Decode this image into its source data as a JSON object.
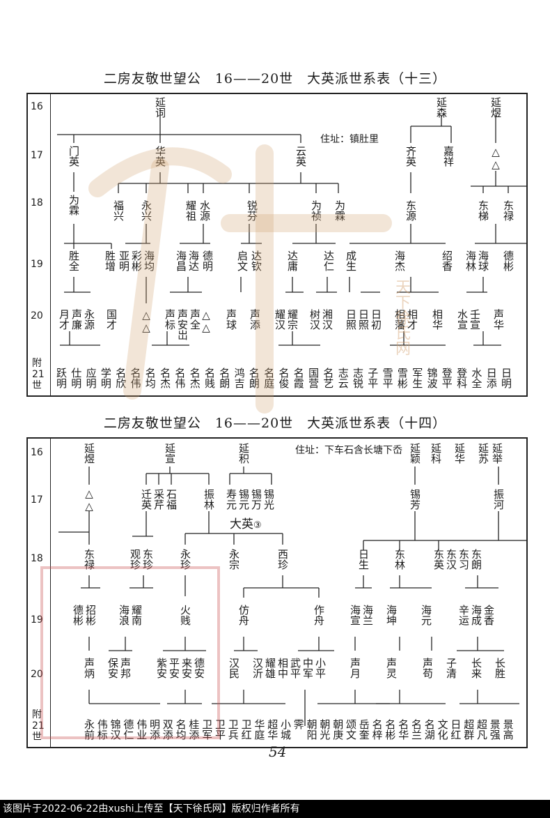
{
  "upper": {
    "title": "二房友敬世望公　16——20世　大英派世系表（十三）",
    "note": "住址：镇肚里",
    "gen_labels": [
      "16",
      "17",
      "18",
      "19",
      "20"
    ],
    "gen_last": [
      "附",
      "21",
      "世"
    ],
    "g16": [
      "延词",
      "延森",
      "延煜"
    ],
    "g17": [
      "门英",
      "华英",
      "云英",
      "齐英",
      "嘉祥",
      "△△"
    ],
    "g18": [
      "为霖",
      "福兴",
      "永兴",
      "耀祖",
      "水源",
      "锐芬",
      "为祯",
      "为霖",
      "东源",
      "东梯",
      "东禄"
    ],
    "g19": [
      "胜全",
      "胜增",
      "亚明",
      "彩彬",
      "海均",
      "海昌",
      "海达",
      "德明",
      "启文",
      "达钦",
      "达庸",
      "达仁",
      "成生",
      "海杰",
      "绍香",
      "海林",
      "海球",
      "德彬"
    ],
    "g20": [
      "月才",
      "声廉",
      "永源",
      "国才",
      "△△",
      "声标",
      "声安岀",
      "声全",
      "△△",
      "声球",
      "声添",
      "耀汉",
      "耀宗",
      "树汉",
      "湘汉",
      "日照",
      "日照",
      "日初",
      "相藩",
      "相才",
      "相华",
      "水宣",
      "壬宣",
      "声华"
    ],
    "g21": [
      "跃明",
      "仕明",
      "应明",
      "学明",
      "名欣",
      "名伟",
      "名均",
      "名杰",
      "名伟",
      "名杰",
      "名贱",
      "名朗",
      "鸿吉",
      "名朗",
      "名庭",
      "名俊",
      "名霞",
      "国营",
      "名艺",
      "志云",
      "志锐",
      "子平",
      "雪平",
      "雪彬",
      "军生",
      "锦波",
      "登平",
      "登科",
      "水全",
      "日添",
      "日明"
    ]
  },
  "lower": {
    "title": "二房友敬世望公　16——20世　大英派世系表（十四）",
    "note": "住址：下车石含长塘下岙",
    "gen_labels": [
      "16",
      "17",
      "18",
      "19",
      "20"
    ],
    "gen_last": [
      "附",
      "21",
      "世"
    ],
    "g16": [
      "延煜",
      "延宣",
      "延积",
      "延颖",
      "延科",
      "延华",
      "延苏",
      "延举"
    ],
    "g17": [
      "△△",
      "迁英",
      "采芹",
      "石福",
      "振林",
      "寿元",
      "锡元",
      "锡万",
      "锡光",
      "锡芳",
      "振河"
    ],
    "dayi": "大英",
    "dayi_mark": "③",
    "g18": [
      "东禄",
      "观珍",
      "东珍",
      "永珍",
      "永宗",
      "西珍",
      "日生",
      "东林",
      "东英",
      "东汉",
      "东习",
      "东朗"
    ],
    "g19": [
      "德彬",
      "招彬",
      "海浪",
      "耀南",
      "火贱",
      "仿舟",
      "作舟",
      "海宣",
      "海兰",
      "海坤",
      "海元",
      "辛运",
      "海成",
      "金香"
    ],
    "g20": [
      "声炳",
      "保安",
      "声邦",
      "紫安",
      "平安",
      "来安",
      "德安",
      "汉民",
      "汉沂",
      "耀雄",
      "相中",
      "武平",
      "中军",
      "小平",
      "声月",
      "声灵",
      "声苟",
      "子清",
      "长来",
      "长胜"
    ],
    "g21": [
      "永前",
      "伟标",
      "锦汉",
      "德仁",
      "伟业",
      "明添",
      "双添",
      "名均",
      "桂添",
      "卫军",
      "卫平",
      "卫兵",
      "卫红",
      "华庭",
      "超华",
      "小城",
      "霁",
      "朝阳",
      "朝光",
      "朝庚",
      "颂文",
      "岳奎",
      "名梓",
      "名彬",
      "名华",
      "名兰",
      "名湖",
      "文化",
      "日红",
      "超群",
      "超凡",
      "景强",
      "景高"
    ]
  },
  "page_number": "54",
  "watermark_text": "天下徐氏网",
  "footer": "该图片于2022-06-22由xushi上传至【天下徐氏网】版权归作者所有"
}
